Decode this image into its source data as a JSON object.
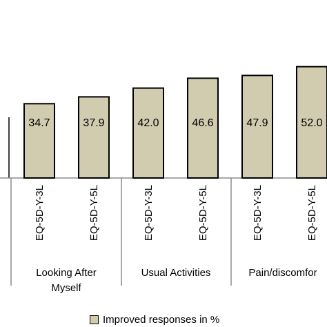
{
  "chart_data": {
    "type": "bar",
    "categories": [
      "EQ-5D-Y-3L",
      "EQ-5D-Y-5L",
      "EQ-5D-Y-3L",
      "EQ-5D-Y-5L",
      "EQ-5D-Y-3L",
      "EQ-5D-Y-5L"
    ],
    "groups": [
      {
        "label_lines": [
          "Looking After",
          "Myself"
        ]
      },
      {
        "label_lines": [
          "Usual Activities"
        ]
      },
      {
        "label_lines": [
          "Pain/discomfor"
        ]
      }
    ],
    "series": [
      {
        "name": "Improved responses in %",
        "values": [
          34.7,
          37.9,
          42.0,
          46.6,
          47.9,
          52.0
        ],
        "color": "#d1cbb0"
      }
    ],
    "value_labels": [
      "34.7",
      "37.9",
      "42.0",
      "46.6",
      "47.9",
      "52.0"
    ],
    "ylim": [
      0,
      70
    ],
    "grid": false,
    "legend_position": "bottom"
  }
}
